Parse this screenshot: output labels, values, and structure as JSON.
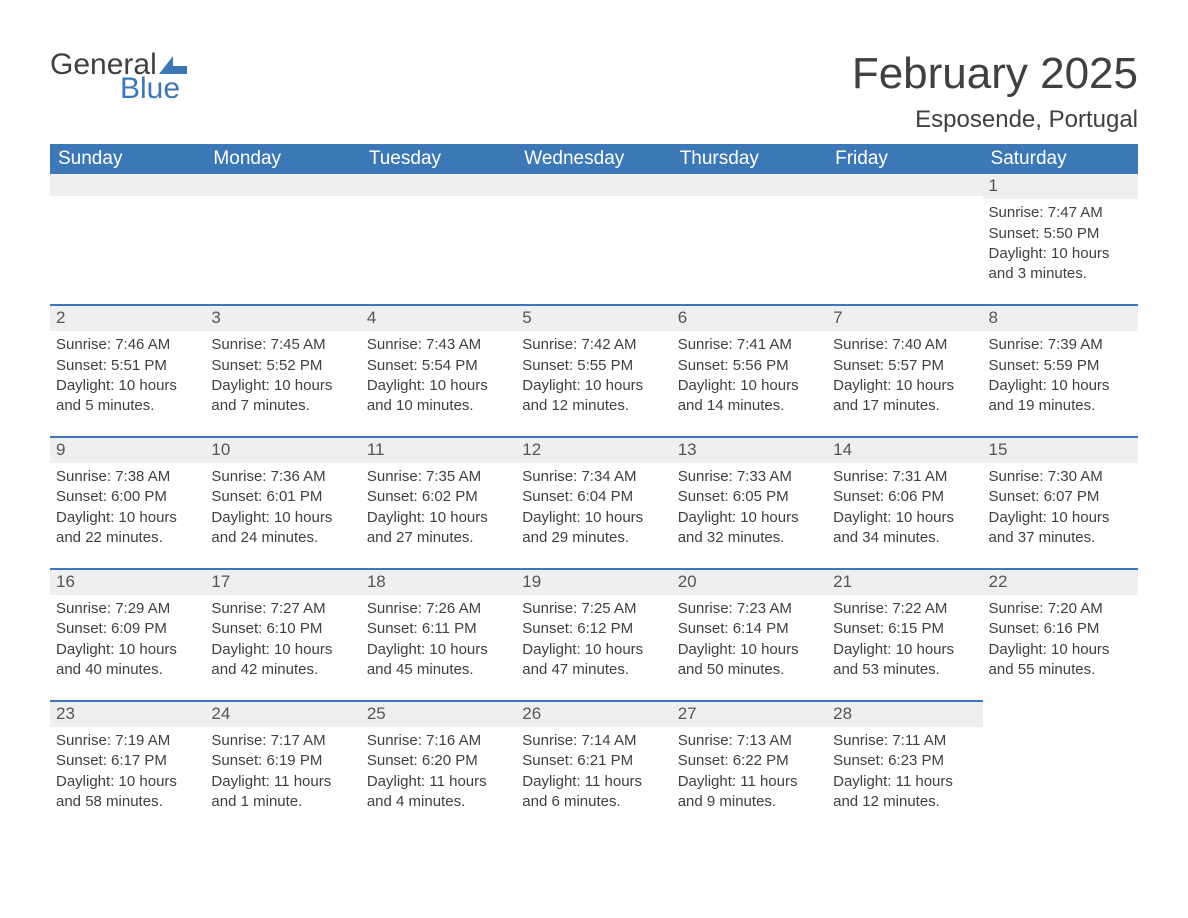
{
  "logo": {
    "general": "General",
    "blue": "Blue",
    "flag_color": "#3d78b6"
  },
  "title": "February 2025",
  "location": "Esposende, Portugal",
  "header_bg": "#3d78b6",
  "header_fg": "#ffffff",
  "daynum_bg": "#efefef",
  "daynum_border": "#3d78b6",
  "text_color": "#404040",
  "columns": [
    "Sunday",
    "Monday",
    "Tuesday",
    "Wednesday",
    "Thursday",
    "Friday",
    "Saturday"
  ],
  "weeks": [
    [
      null,
      null,
      null,
      null,
      null,
      null,
      {
        "n": "1",
        "sunrise": "Sunrise: 7:47 AM",
        "sunset": "Sunset: 5:50 PM",
        "dl1": "Daylight: 10 hours",
        "dl2": "and 3 minutes."
      }
    ],
    [
      {
        "n": "2",
        "sunrise": "Sunrise: 7:46 AM",
        "sunset": "Sunset: 5:51 PM",
        "dl1": "Daylight: 10 hours",
        "dl2": "and 5 minutes."
      },
      {
        "n": "3",
        "sunrise": "Sunrise: 7:45 AM",
        "sunset": "Sunset: 5:52 PM",
        "dl1": "Daylight: 10 hours",
        "dl2": "and 7 minutes."
      },
      {
        "n": "4",
        "sunrise": "Sunrise: 7:43 AM",
        "sunset": "Sunset: 5:54 PM",
        "dl1": "Daylight: 10 hours",
        "dl2": "and 10 minutes."
      },
      {
        "n": "5",
        "sunrise": "Sunrise: 7:42 AM",
        "sunset": "Sunset: 5:55 PM",
        "dl1": "Daylight: 10 hours",
        "dl2": "and 12 minutes."
      },
      {
        "n": "6",
        "sunrise": "Sunrise: 7:41 AM",
        "sunset": "Sunset: 5:56 PM",
        "dl1": "Daylight: 10 hours",
        "dl2": "and 14 minutes."
      },
      {
        "n": "7",
        "sunrise": "Sunrise: 7:40 AM",
        "sunset": "Sunset: 5:57 PM",
        "dl1": "Daylight: 10 hours",
        "dl2": "and 17 minutes."
      },
      {
        "n": "8",
        "sunrise": "Sunrise: 7:39 AM",
        "sunset": "Sunset: 5:59 PM",
        "dl1": "Daylight: 10 hours",
        "dl2": "and 19 minutes."
      }
    ],
    [
      {
        "n": "9",
        "sunrise": "Sunrise: 7:38 AM",
        "sunset": "Sunset: 6:00 PM",
        "dl1": "Daylight: 10 hours",
        "dl2": "and 22 minutes."
      },
      {
        "n": "10",
        "sunrise": "Sunrise: 7:36 AM",
        "sunset": "Sunset: 6:01 PM",
        "dl1": "Daylight: 10 hours",
        "dl2": "and 24 minutes."
      },
      {
        "n": "11",
        "sunrise": "Sunrise: 7:35 AM",
        "sunset": "Sunset: 6:02 PM",
        "dl1": "Daylight: 10 hours",
        "dl2": "and 27 minutes."
      },
      {
        "n": "12",
        "sunrise": "Sunrise: 7:34 AM",
        "sunset": "Sunset: 6:04 PM",
        "dl1": "Daylight: 10 hours",
        "dl2": "and 29 minutes."
      },
      {
        "n": "13",
        "sunrise": "Sunrise: 7:33 AM",
        "sunset": "Sunset: 6:05 PM",
        "dl1": "Daylight: 10 hours",
        "dl2": "and 32 minutes."
      },
      {
        "n": "14",
        "sunrise": "Sunrise: 7:31 AM",
        "sunset": "Sunset: 6:06 PM",
        "dl1": "Daylight: 10 hours",
        "dl2": "and 34 minutes."
      },
      {
        "n": "15",
        "sunrise": "Sunrise: 7:30 AM",
        "sunset": "Sunset: 6:07 PM",
        "dl1": "Daylight: 10 hours",
        "dl2": "and 37 minutes."
      }
    ],
    [
      {
        "n": "16",
        "sunrise": "Sunrise: 7:29 AM",
        "sunset": "Sunset: 6:09 PM",
        "dl1": "Daylight: 10 hours",
        "dl2": "and 40 minutes."
      },
      {
        "n": "17",
        "sunrise": "Sunrise: 7:27 AM",
        "sunset": "Sunset: 6:10 PM",
        "dl1": "Daylight: 10 hours",
        "dl2": "and 42 minutes."
      },
      {
        "n": "18",
        "sunrise": "Sunrise: 7:26 AM",
        "sunset": "Sunset: 6:11 PM",
        "dl1": "Daylight: 10 hours",
        "dl2": "and 45 minutes."
      },
      {
        "n": "19",
        "sunrise": "Sunrise: 7:25 AM",
        "sunset": "Sunset: 6:12 PM",
        "dl1": "Daylight: 10 hours",
        "dl2": "and 47 minutes."
      },
      {
        "n": "20",
        "sunrise": "Sunrise: 7:23 AM",
        "sunset": "Sunset: 6:14 PM",
        "dl1": "Daylight: 10 hours",
        "dl2": "and 50 minutes."
      },
      {
        "n": "21",
        "sunrise": "Sunrise: 7:22 AM",
        "sunset": "Sunset: 6:15 PM",
        "dl1": "Daylight: 10 hours",
        "dl2": "and 53 minutes."
      },
      {
        "n": "22",
        "sunrise": "Sunrise: 7:20 AM",
        "sunset": "Sunset: 6:16 PM",
        "dl1": "Daylight: 10 hours",
        "dl2": "and 55 minutes."
      }
    ],
    [
      {
        "n": "23",
        "sunrise": "Sunrise: 7:19 AM",
        "sunset": "Sunset: 6:17 PM",
        "dl1": "Daylight: 10 hours",
        "dl2": "and 58 minutes."
      },
      {
        "n": "24",
        "sunrise": "Sunrise: 7:17 AM",
        "sunset": "Sunset: 6:19 PM",
        "dl1": "Daylight: 11 hours",
        "dl2": "and 1 minute."
      },
      {
        "n": "25",
        "sunrise": "Sunrise: 7:16 AM",
        "sunset": "Sunset: 6:20 PM",
        "dl1": "Daylight: 11 hours",
        "dl2": "and 4 minutes."
      },
      {
        "n": "26",
        "sunrise": "Sunrise: 7:14 AM",
        "sunset": "Sunset: 6:21 PM",
        "dl1": "Daylight: 11 hours",
        "dl2": "and 6 minutes."
      },
      {
        "n": "27",
        "sunrise": "Sunrise: 7:13 AM",
        "sunset": "Sunset: 6:22 PM",
        "dl1": "Daylight: 11 hours",
        "dl2": "and 9 minutes."
      },
      {
        "n": "28",
        "sunrise": "Sunrise: 7:11 AM",
        "sunset": "Sunset: 6:23 PM",
        "dl1": "Daylight: 11 hours",
        "dl2": "and 12 minutes."
      },
      null
    ]
  ]
}
